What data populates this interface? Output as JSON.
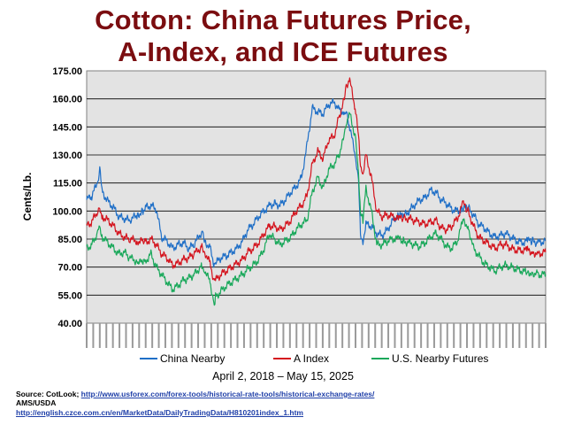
{
  "title_line1": "Cotton:  China Futures Price,",
  "title_line2": "A-Index, and ICE Futures",
  "period": "April 2, 2018 – May 15, 2025",
  "source": {
    "label": "Source:  CotLook; ",
    "link1": "http://www.usforex.com/forex-tools/historical-rate-tools/historical-exchange-rates/",
    "line2": "AMS/USDA",
    "link2": "http://english.czce.com.cn/en/MarketData/DailyTradingData/H810201index_1.htm"
  },
  "colors": {
    "china": "#1f6fc7",
    "aindex": "#d4141e",
    "us": "#19a85a",
    "plot_bg": "#e3e3e3",
    "title": "#7b0d10"
  },
  "chart_data": {
    "type": "line",
    "title": "Cotton:  China Futures Price, A-Index, and ICE Futures",
    "ylabel": "Cents/Lb.",
    "ylim": [
      40,
      175
    ],
    "yticks": [
      "40.00",
      "55.00",
      "70.00",
      "85.00",
      "100.00",
      "115.00",
      "130.00",
      "145.00",
      "160.00",
      "175.00"
    ],
    "xlim": [
      "2018-04-02",
      "2025-05-15"
    ],
    "grid": true,
    "legend_position": "bottom",
    "series": [
      {
        "name": "China Nearby",
        "color": "#1f6fc7",
        "points": [
          [
            "2018-04-02",
            106
          ],
          [
            "2018-05-01",
            108
          ],
          [
            "2018-06-01",
            115
          ],
          [
            "2018-06-15",
            122
          ],
          [
            "2018-07-01",
            110
          ],
          [
            "2018-08-01",
            105
          ],
          [
            "2018-09-01",
            102
          ],
          [
            "2018-10-01",
            97
          ],
          [
            "2018-11-01",
            96
          ],
          [
            "2018-12-01",
            95
          ],
          [
            "2019-01-15",
            98
          ],
          [
            "2019-02-15",
            100
          ],
          [
            "2019-03-01",
            102
          ],
          [
            "2019-04-01",
            103
          ],
          [
            "2019-05-01",
            101
          ],
          [
            "2019-06-01",
            86
          ],
          [
            "2019-07-01",
            84
          ],
          [
            "2019-08-01",
            80
          ],
          [
            "2019-09-01",
            82
          ],
          [
            "2019-10-01",
            83
          ],
          [
            "2019-11-01",
            80
          ],
          [
            "2019-12-01",
            82
          ],
          [
            "2020-01-15",
            89
          ],
          [
            "2020-02-01",
            84
          ],
          [
            "2020-03-01",
            80
          ],
          [
            "2020-03-25",
            71
          ],
          [
            "2020-04-01",
            72
          ],
          [
            "2020-05-01",
            75
          ],
          [
            "2020-06-01",
            76
          ],
          [
            "2020-07-01",
            78
          ],
          [
            "2020-08-01",
            80
          ],
          [
            "2020-09-01",
            84
          ],
          [
            "2020-10-01",
            90
          ],
          [
            "2020-11-01",
            93
          ],
          [
            "2020-12-01",
            97
          ],
          [
            "2021-01-01",
            100
          ],
          [
            "2021-02-01",
            103
          ],
          [
            "2021-03-01",
            104
          ],
          [
            "2021-04-01",
            103
          ],
          [
            "2021-05-01",
            106
          ],
          [
            "2021-06-01",
            110
          ],
          [
            "2021-07-01",
            113
          ],
          [
            "2021-08-01",
            118
          ],
          [
            "2021-09-01",
            135
          ],
          [
            "2021-10-01",
            155
          ],
          [
            "2021-11-01",
            153
          ],
          [
            "2021-12-01",
            152
          ],
          [
            "2022-01-01",
            157
          ],
          [
            "2022-02-01",
            158
          ],
          [
            "2022-03-01",
            155
          ],
          [
            "2022-04-01",
            152
          ],
          [
            "2022-04-15",
            153
          ],
          [
            "2022-05-01",
            145
          ],
          [
            "2022-06-01",
            130
          ],
          [
            "2022-06-20",
            115
          ],
          [
            "2022-07-01",
            88
          ],
          [
            "2022-07-15",
            84
          ],
          [
            "2022-08-01",
            93
          ],
          [
            "2022-09-01",
            92
          ],
          [
            "2022-10-01",
            88
          ],
          [
            "2022-11-01",
            87
          ],
          [
            "2022-12-01",
            90
          ],
          [
            "2023-01-01",
            95
          ],
          [
            "2023-02-01",
            98
          ],
          [
            "2023-03-01",
            97
          ],
          [
            "2023-04-01",
            100
          ],
          [
            "2023-05-01",
            103
          ],
          [
            "2023-06-01",
            106
          ],
          [
            "2023-07-01",
            107
          ],
          [
            "2023-08-01",
            111
          ],
          [
            "2023-09-01",
            110
          ],
          [
            "2023-10-01",
            106
          ],
          [
            "2023-11-01",
            104
          ],
          [
            "2023-12-01",
            101
          ],
          [
            "2024-01-01",
            100
          ],
          [
            "2024-02-01",
            101
          ],
          [
            "2024-03-01",
            102
          ],
          [
            "2024-04-01",
            98
          ],
          [
            "2024-05-01",
            93
          ],
          [
            "2024-06-01",
            91
          ],
          [
            "2024-07-01",
            88
          ],
          [
            "2024-08-01",
            86
          ],
          [
            "2024-09-01",
            87
          ],
          [
            "2024-10-01",
            88
          ],
          [
            "2024-11-01",
            86
          ],
          [
            "2024-12-01",
            84
          ],
          [
            "2025-01-01",
            83
          ],
          [
            "2025-02-01",
            84
          ],
          [
            "2025-03-01",
            84
          ],
          [
            "2025-04-01",
            83
          ],
          [
            "2025-05-15",
            84
          ]
        ]
      },
      {
        "name": "A Index",
        "color": "#d4141e",
        "points": [
          [
            "2018-04-02",
            92
          ],
          [
            "2018-05-01",
            94
          ],
          [
            "2018-06-01",
            100
          ],
          [
            "2018-06-15",
            101
          ],
          [
            "2018-07-01",
            97
          ],
          [
            "2018-08-01",
            95
          ],
          [
            "2018-09-01",
            92
          ],
          [
            "2018-10-01",
            88
          ],
          [
            "2018-11-01",
            86
          ],
          [
            "2018-12-01",
            85
          ],
          [
            "2019-01-15",
            84
          ],
          [
            "2019-02-15",
            84
          ],
          [
            "2019-03-01",
            83
          ],
          [
            "2019-04-01",
            85
          ],
          [
            "2019-05-01",
            82
          ],
          [
            "2019-06-01",
            77
          ],
          [
            "2019-07-01",
            75
          ],
          [
            "2019-08-01",
            71
          ],
          [
            "2019-09-01",
            72
          ],
          [
            "2019-10-01",
            74
          ],
          [
            "2019-11-01",
            75
          ],
          [
            "2019-12-01",
            77
          ],
          [
            "2020-01-15",
            81
          ],
          [
            "2020-02-01",
            78
          ],
          [
            "2020-03-01",
            72
          ],
          [
            "2020-03-25",
            62
          ],
          [
            "2020-04-01",
            63
          ],
          [
            "2020-05-01",
            66
          ],
          [
            "2020-06-01",
            68
          ],
          [
            "2020-07-01",
            70
          ],
          [
            "2020-08-01",
            72
          ],
          [
            "2020-09-01",
            74
          ],
          [
            "2020-10-01",
            78
          ],
          [
            "2020-11-01",
            80
          ],
          [
            "2020-12-01",
            83
          ],
          [
            "2021-01-01",
            88
          ],
          [
            "2021-02-01",
            92
          ],
          [
            "2021-03-01",
            92
          ],
          [
            "2021-04-01",
            90
          ],
          [
            "2021-05-01",
            92
          ],
          [
            "2021-06-01",
            95
          ],
          [
            "2021-07-01",
            100
          ],
          [
            "2021-08-01",
            103
          ],
          [
            "2021-09-01",
            108
          ],
          [
            "2021-10-01",
            125
          ],
          [
            "2021-11-01",
            132
          ],
          [
            "2021-12-01",
            128
          ],
          [
            "2022-01-01",
            138
          ],
          [
            "2022-02-01",
            140
          ],
          [
            "2022-03-01",
            150
          ],
          [
            "2022-04-01",
            160
          ],
          [
            "2022-04-15",
            168
          ],
          [
            "2022-05-01",
            170
          ],
          [
            "2022-06-01",
            155
          ],
          [
            "2022-06-20",
            140
          ],
          [
            "2022-07-01",
            125
          ],
          [
            "2022-07-15",
            120
          ],
          [
            "2022-08-01",
            130
          ],
          [
            "2022-09-01",
            118
          ],
          [
            "2022-10-01",
            100
          ],
          [
            "2022-11-01",
            97
          ],
          [
            "2022-12-01",
            98
          ],
          [
            "2023-01-01",
            97
          ],
          [
            "2023-02-01",
            96
          ],
          [
            "2023-03-01",
            96
          ],
          [
            "2023-04-01",
            96
          ],
          [
            "2023-05-01",
            95
          ],
          [
            "2023-06-01",
            94
          ],
          [
            "2023-07-01",
            93
          ],
          [
            "2023-08-01",
            94
          ],
          [
            "2023-09-01",
            95
          ],
          [
            "2023-10-01",
            91
          ],
          [
            "2023-11-01",
            90
          ],
          [
            "2023-12-01",
            92
          ],
          [
            "2024-01-01",
            96
          ],
          [
            "2024-02-01",
            104
          ],
          [
            "2024-03-01",
            100
          ],
          [
            "2024-04-01",
            92
          ],
          [
            "2024-05-01",
            86
          ],
          [
            "2024-06-01",
            84
          ],
          [
            "2024-07-01",
            82
          ],
          [
            "2024-08-01",
            80
          ],
          [
            "2024-09-01",
            82
          ],
          [
            "2024-10-01",
            82
          ],
          [
            "2024-11-01",
            80
          ],
          [
            "2024-12-01",
            79
          ],
          [
            "2025-01-01",
            79
          ],
          [
            "2025-02-01",
            79
          ],
          [
            "2025-03-01",
            78
          ],
          [
            "2025-04-01",
            77
          ],
          [
            "2025-05-15",
            78
          ]
        ]
      },
      {
        "name": "U.S. Nearby Futures",
        "color": "#19a85a",
        "points": [
          [
            "2018-04-02",
            80
          ],
          [
            "2018-05-01",
            82
          ],
          [
            "2018-06-01",
            88
          ],
          [
            "2018-06-15",
            92
          ],
          [
            "2018-07-01",
            86
          ],
          [
            "2018-08-01",
            83
          ],
          [
            "2018-09-01",
            80
          ],
          [
            "2018-10-01",
            77
          ],
          [
            "2018-11-01",
            78
          ],
          [
            "2018-12-01",
            75
          ],
          [
            "2019-01-15",
            73
          ],
          [
            "2019-02-15",
            72
          ],
          [
            "2019-03-01",
            73
          ],
          [
            "2019-04-01",
            77
          ],
          [
            "2019-05-01",
            70
          ],
          [
            "2019-06-01",
            66
          ],
          [
            "2019-07-01",
            62
          ],
          [
            "2019-08-01",
            58
          ],
          [
            "2019-09-01",
            60
          ],
          [
            "2019-10-01",
            63
          ],
          [
            "2019-11-01",
            64
          ],
          [
            "2019-12-01",
            66
          ],
          [
            "2020-01-15",
            71
          ],
          [
            "2020-02-01",
            68
          ],
          [
            "2020-03-01",
            62
          ],
          [
            "2020-03-25",
            50
          ],
          [
            "2020-04-01",
            54
          ],
          [
            "2020-05-01",
            57
          ],
          [
            "2020-06-01",
            60
          ],
          [
            "2020-07-01",
            62
          ],
          [
            "2020-08-01",
            64
          ],
          [
            "2020-09-01",
            66
          ],
          [
            "2020-10-01",
            69
          ],
          [
            "2020-11-01",
            71
          ],
          [
            "2020-12-01",
            74
          ],
          [
            "2021-01-01",
            80
          ],
          [
            "2021-02-01",
            88
          ],
          [
            "2021-03-01",
            85
          ],
          [
            "2021-04-01",
            82
          ],
          [
            "2021-05-01",
            84
          ],
          [
            "2021-06-01",
            86
          ],
          [
            "2021-07-01",
            90
          ],
          [
            "2021-08-01",
            93
          ],
          [
            "2021-09-01",
            95
          ],
          [
            "2021-10-01",
            110
          ],
          [
            "2021-11-01",
            118
          ],
          [
            "2021-12-01",
            112
          ],
          [
            "2022-01-01",
            122
          ],
          [
            "2022-02-01",
            125
          ],
          [
            "2022-03-01",
            130
          ],
          [
            "2022-04-01",
            140
          ],
          [
            "2022-04-15",
            148
          ],
          [
            "2022-05-01",
            152
          ],
          [
            "2022-06-01",
            140
          ],
          [
            "2022-06-20",
            120
          ],
          [
            "2022-07-01",
            100
          ],
          [
            "2022-07-15",
            95
          ],
          [
            "2022-08-01",
            112
          ],
          [
            "2022-09-01",
            100
          ],
          [
            "2022-10-01",
            82
          ],
          [
            "2022-11-01",
            82
          ],
          [
            "2022-12-01",
            84
          ],
          [
            "2023-01-01",
            85
          ],
          [
            "2023-02-01",
            85
          ],
          [
            "2023-03-01",
            84
          ],
          [
            "2023-04-01",
            83
          ],
          [
            "2023-05-01",
            82
          ],
          [
            "2023-06-01",
            81
          ],
          [
            "2023-07-01",
            83
          ],
          [
            "2023-08-01",
            86
          ],
          [
            "2023-09-01",
            88
          ],
          [
            "2023-10-01",
            85
          ],
          [
            "2023-11-01",
            81
          ],
          [
            "2023-12-01",
            80
          ],
          [
            "2024-01-01",
            84
          ],
          [
            "2024-02-01",
            95
          ],
          [
            "2024-03-01",
            92
          ],
          [
            "2024-04-01",
            80
          ],
          [
            "2024-05-01",
            76
          ],
          [
            "2024-06-01",
            72
          ],
          [
            "2024-07-01",
            70
          ],
          [
            "2024-08-01",
            68
          ],
          [
            "2024-09-01",
            70
          ],
          [
            "2024-10-01",
            71
          ],
          [
            "2024-11-01",
            70
          ],
          [
            "2024-12-01",
            69
          ],
          [
            "2025-01-01",
            68
          ],
          [
            "2025-02-01",
            67
          ],
          [
            "2025-03-01",
            67
          ],
          [
            "2025-04-01",
            66
          ],
          [
            "2025-05-15",
            66
          ]
        ]
      }
    ]
  }
}
